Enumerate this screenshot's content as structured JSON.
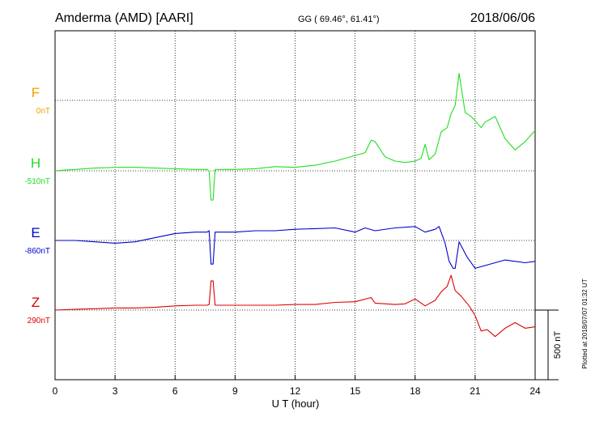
{
  "header": {
    "station": "Amderma (AMD)  [AARI]",
    "coords": "GG ( 69.46°,  61.41°)",
    "date": "2018/06/06"
  },
  "side_note": "Plotted at 2018/07/07 01:32 UT",
  "chart_data": {
    "type": "line",
    "xlabel": "U T (hour)",
    "xlim": [
      0,
      24
    ],
    "xticks": [
      "0",
      "3",
      "6",
      "9",
      "12",
      "15",
      "18",
      "21",
      "24"
    ],
    "grid": true,
    "scale_bar": {
      "label": "500 nT",
      "value_nT": 500
    },
    "series": [
      {
        "name": "F",
        "baseline": "0nT",
        "color": "#f0a000",
        "points": []
      },
      {
        "name": "H",
        "baseline": "-510nT",
        "color": "#22dd22",
        "points": [
          [
            0,
            -510
          ],
          [
            0.5,
            -505
          ],
          [
            1,
            -500
          ],
          [
            2,
            -490
          ],
          [
            3,
            -485
          ],
          [
            4,
            -485
          ],
          [
            5,
            -490
          ],
          [
            6,
            -495
          ],
          [
            7,
            -500
          ],
          [
            7.6,
            -500
          ],
          [
            7.7,
            -515
          ],
          [
            7.8,
            -720
          ],
          [
            7.9,
            -720
          ],
          [
            8,
            -500
          ],
          [
            9,
            -500
          ],
          [
            10,
            -495
          ],
          [
            11,
            -480
          ],
          [
            12,
            -485
          ],
          [
            13,
            -470
          ],
          [
            14,
            -440
          ],
          [
            14.5,
            -420
          ],
          [
            15,
            -400
          ],
          [
            15.5,
            -380
          ],
          [
            15.8,
            -290
          ],
          [
            16,
            -300
          ],
          [
            16.5,
            -410
          ],
          [
            17,
            -440
          ],
          [
            17.5,
            -450
          ],
          [
            18,
            -440
          ],
          [
            18.3,
            -420
          ],
          [
            18.5,
            -320
          ],
          [
            18.7,
            -430
          ],
          [
            19,
            -390
          ],
          [
            19.3,
            -230
          ],
          [
            19.6,
            -200
          ],
          [
            19.8,
            -100
          ],
          [
            20,
            -40
          ],
          [
            20.2,
            190
          ],
          [
            20.5,
            -90
          ],
          [
            20.8,
            -120
          ],
          [
            21,
            -150
          ],
          [
            21.3,
            -200
          ],
          [
            21.5,
            -160
          ],
          [
            22,
            -120
          ],
          [
            22.5,
            -280
          ],
          [
            23,
            -360
          ],
          [
            23.5,
            -300
          ],
          [
            24,
            -220
          ]
        ]
      },
      {
        "name": "E",
        "baseline": "-860nT",
        "color": "#0000cc",
        "points": [
          [
            0,
            -860
          ],
          [
            1,
            -860
          ],
          [
            2,
            -870
          ],
          [
            3,
            -880
          ],
          [
            4,
            -870
          ],
          [
            5,
            -840
          ],
          [
            6,
            -810
          ],
          [
            7,
            -800
          ],
          [
            7.6,
            -800
          ],
          [
            7.7,
            -790
          ],
          [
            7.8,
            -1030
          ],
          [
            7.9,
            -1030
          ],
          [
            8,
            -800
          ],
          [
            9,
            -800
          ],
          [
            10,
            -790
          ],
          [
            11,
            -790
          ],
          [
            12,
            -780
          ],
          [
            13,
            -775
          ],
          [
            14,
            -770
          ],
          [
            15,
            -800
          ],
          [
            15.5,
            -770
          ],
          [
            16,
            -790
          ],
          [
            17,
            -770
          ],
          [
            18,
            -760
          ],
          [
            18.5,
            -800
          ],
          [
            19,
            -780
          ],
          [
            19.2,
            -760
          ],
          [
            19.5,
            -880
          ],
          [
            19.7,
            -1010
          ],
          [
            19.9,
            -1060
          ],
          [
            20,
            -1060
          ],
          [
            20.2,
            -870
          ],
          [
            20.6,
            -980
          ],
          [
            21,
            -1060
          ],
          [
            21.5,
            -1040
          ],
          [
            22,
            -1020
          ],
          [
            22.5,
            -1000
          ],
          [
            23,
            -1010
          ],
          [
            23.5,
            -1020
          ],
          [
            24,
            -1010
          ]
        ]
      },
      {
        "name": "Z",
        "baseline": "290nT",
        "color": "#dd0000",
        "points": [
          [
            0,
            290
          ],
          [
            1,
            295
          ],
          [
            2,
            300
          ],
          [
            3,
            305
          ],
          [
            4,
            305
          ],
          [
            5,
            310
          ],
          [
            6,
            320
          ],
          [
            7,
            325
          ],
          [
            7.6,
            325
          ],
          [
            7.7,
            330
          ],
          [
            7.8,
            500
          ],
          [
            7.9,
            500
          ],
          [
            8,
            325
          ],
          [
            9,
            325
          ],
          [
            10,
            325
          ],
          [
            11,
            325
          ],
          [
            12,
            330
          ],
          [
            13,
            330
          ],
          [
            14,
            345
          ],
          [
            15,
            350
          ],
          [
            15.8,
            380
          ],
          [
            16,
            340
          ],
          [
            17,
            330
          ],
          [
            17.5,
            335
          ],
          [
            18,
            370
          ],
          [
            18.5,
            320
          ],
          [
            19,
            360
          ],
          [
            19.3,
            420
          ],
          [
            19.6,
            460
          ],
          [
            19.8,
            540
          ],
          [
            20,
            430
          ],
          [
            20.3,
            390
          ],
          [
            20.7,
            320
          ],
          [
            21,
            250
          ],
          [
            21.3,
            140
          ],
          [
            21.6,
            150
          ],
          [
            22,
            100
          ],
          [
            22.5,
            160
          ],
          [
            23,
            200
          ],
          [
            23.5,
            160
          ],
          [
            24,
            170
          ]
        ]
      }
    ]
  }
}
